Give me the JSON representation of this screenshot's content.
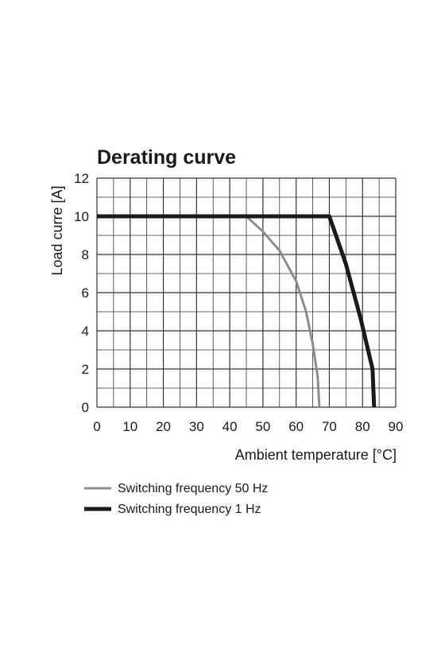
{
  "chart_data": {
    "type": "line",
    "title": "Derating curve",
    "xlabel": "Ambient temperature [°C]",
    "ylabel": "Load curre [A]",
    "xlim": [
      0,
      90
    ],
    "ylim": [
      0,
      12
    ],
    "xticks": [
      0,
      10,
      20,
      30,
      40,
      50,
      60,
      70,
      80,
      90
    ],
    "yticks": [
      0,
      2,
      4,
      6,
      8,
      10,
      12
    ],
    "grid": true,
    "legend_position": "bottom-left",
    "series": [
      {
        "name": "Switching frequency 50 Hz",
        "color": "#8c8c8c",
        "points": [
          [
            0,
            10
          ],
          [
            45,
            10
          ],
          [
            50,
            9.2
          ],
          [
            55,
            8.2
          ],
          [
            60,
            6.6
          ],
          [
            63,
            5.0
          ],
          [
            65,
            3.3
          ],
          [
            66.5,
            1.6
          ],
          [
            67,
            0
          ]
        ]
      },
      {
        "name": "Switching frequency 1 Hz",
        "color": "#1a1a1a",
        "points": [
          [
            0,
            10
          ],
          [
            70,
            10
          ],
          [
            72,
            9.0
          ],
          [
            75,
            7.5
          ],
          [
            79.5,
            4.6
          ],
          [
            83,
            2
          ],
          [
            83.5,
            0
          ]
        ]
      }
    ]
  }
}
